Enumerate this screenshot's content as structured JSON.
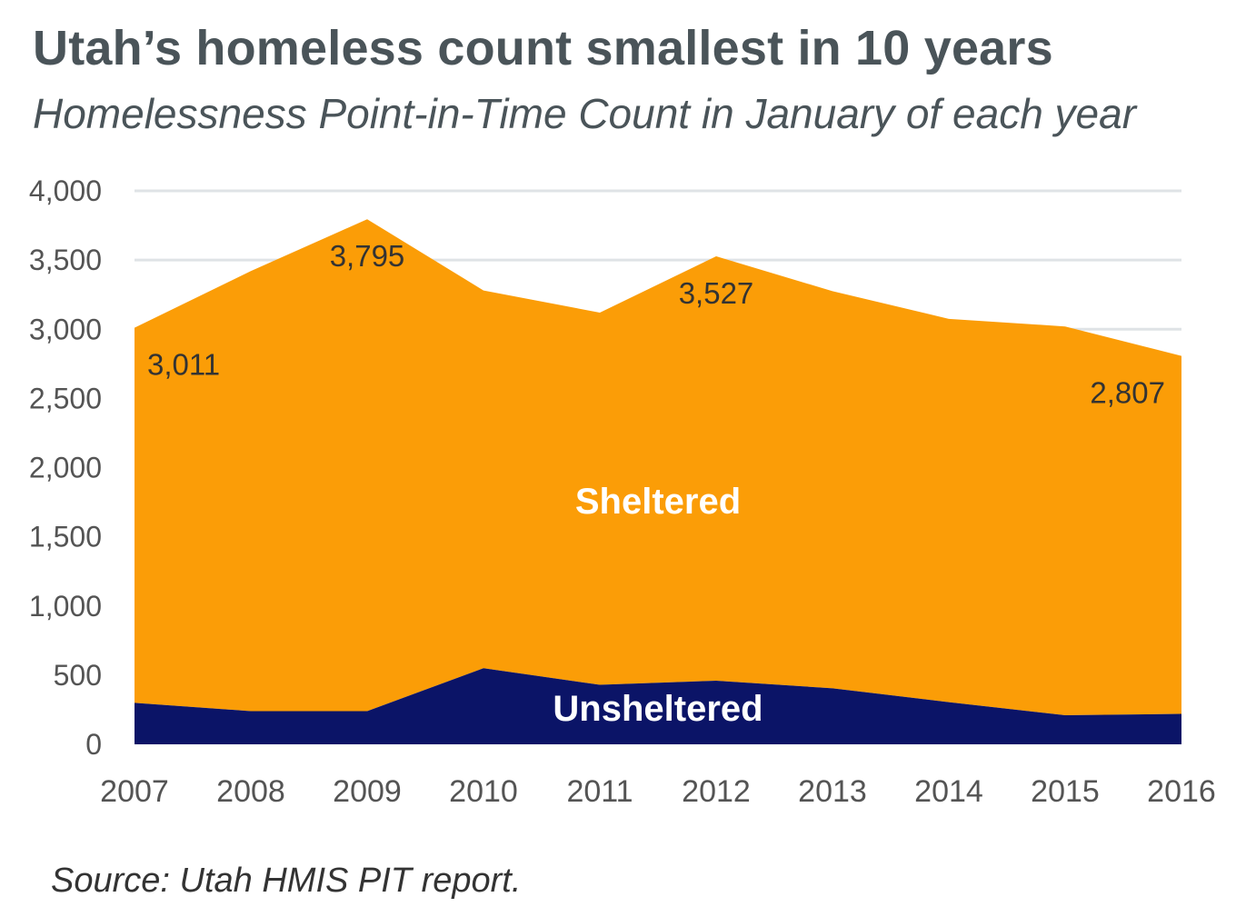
{
  "title": "Utah’s homeless count smallest in 10 years",
  "subtitle": "Homelessness Point-in-Time Count in January of each year",
  "source": "Source: Utah HMIS PIT report.",
  "chart_data": {
    "type": "area",
    "stacked": true,
    "x": [
      "2007",
      "2008",
      "2009",
      "2010",
      "2011",
      "2012",
      "2013",
      "2014",
      "2015",
      "2016"
    ],
    "series": [
      {
        "name": "Unsheltered",
        "color": "#0b1467",
        "values": [
          300,
          240,
          240,
          550,
          430,
          460,
          405,
          305,
          210,
          220
        ]
      },
      {
        "name": "Sheltered",
        "color": "#fb9d07",
        "values": [
          2711,
          3180,
          3555,
          2730,
          2690,
          3067,
          2870,
          2770,
          2810,
          2587
        ]
      }
    ],
    "totals": [
      3011,
      3420,
      3795,
      3280,
      3120,
      3527,
      3275,
      3075,
      3020,
      2807
    ],
    "data_labels": [
      {
        "text": "3,011",
        "year": "2007"
      },
      {
        "text": "3,795",
        "year": "2009"
      },
      {
        "text": "3,527",
        "year": "2012"
      },
      {
        "text": "2,807",
        "year": "2016"
      }
    ],
    "y_ticks": [
      "0",
      "500",
      "1,000",
      "1,500",
      "2,000",
      "2,500",
      "3,000",
      "3,500",
      "4,000"
    ],
    "ylim": [
      0,
      4000
    ],
    "grid": true,
    "legend": "inline labels"
  }
}
